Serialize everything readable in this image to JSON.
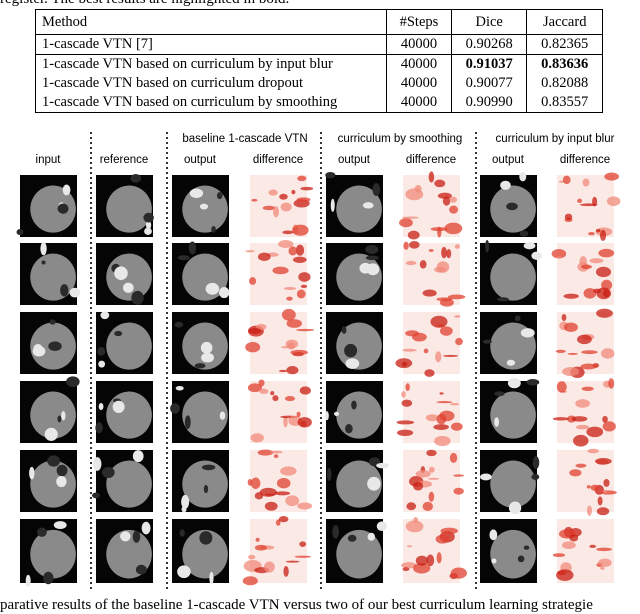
{
  "top_text": "register. The best results are highlighted in bold.",
  "table": {
    "header": [
      "Method",
      "#Steps",
      "Dice",
      "Jaccard"
    ],
    "rows": [
      [
        "1-cascade VTN [7]",
        "40000",
        "0.90268",
        "0.82365"
      ],
      [
        "1-cascade VTN based on curriculum by input blur",
        "40000",
        "0.91037",
        "0.83636"
      ],
      [
        "1-cascade VTN based on curriculum dropout",
        "40000",
        "0.90077",
        "0.82088"
      ],
      [
        "1-cascade VTN based on curriculum by smoothing",
        "40000",
        "0.90990",
        "0.83557"
      ]
    ]
  },
  "figure": {
    "group_headers": [
      "baseline 1-cascade VTN",
      "curriculum by smoothing",
      "curriculum by input blur"
    ],
    "column_labels": [
      "input",
      "reference",
      "output",
      "difference",
      "output",
      "difference",
      "output",
      "difference"
    ]
  },
  "caption": "parative results of the baseline 1-cascade VTN versus two of our best curriculum learning strategie"
}
